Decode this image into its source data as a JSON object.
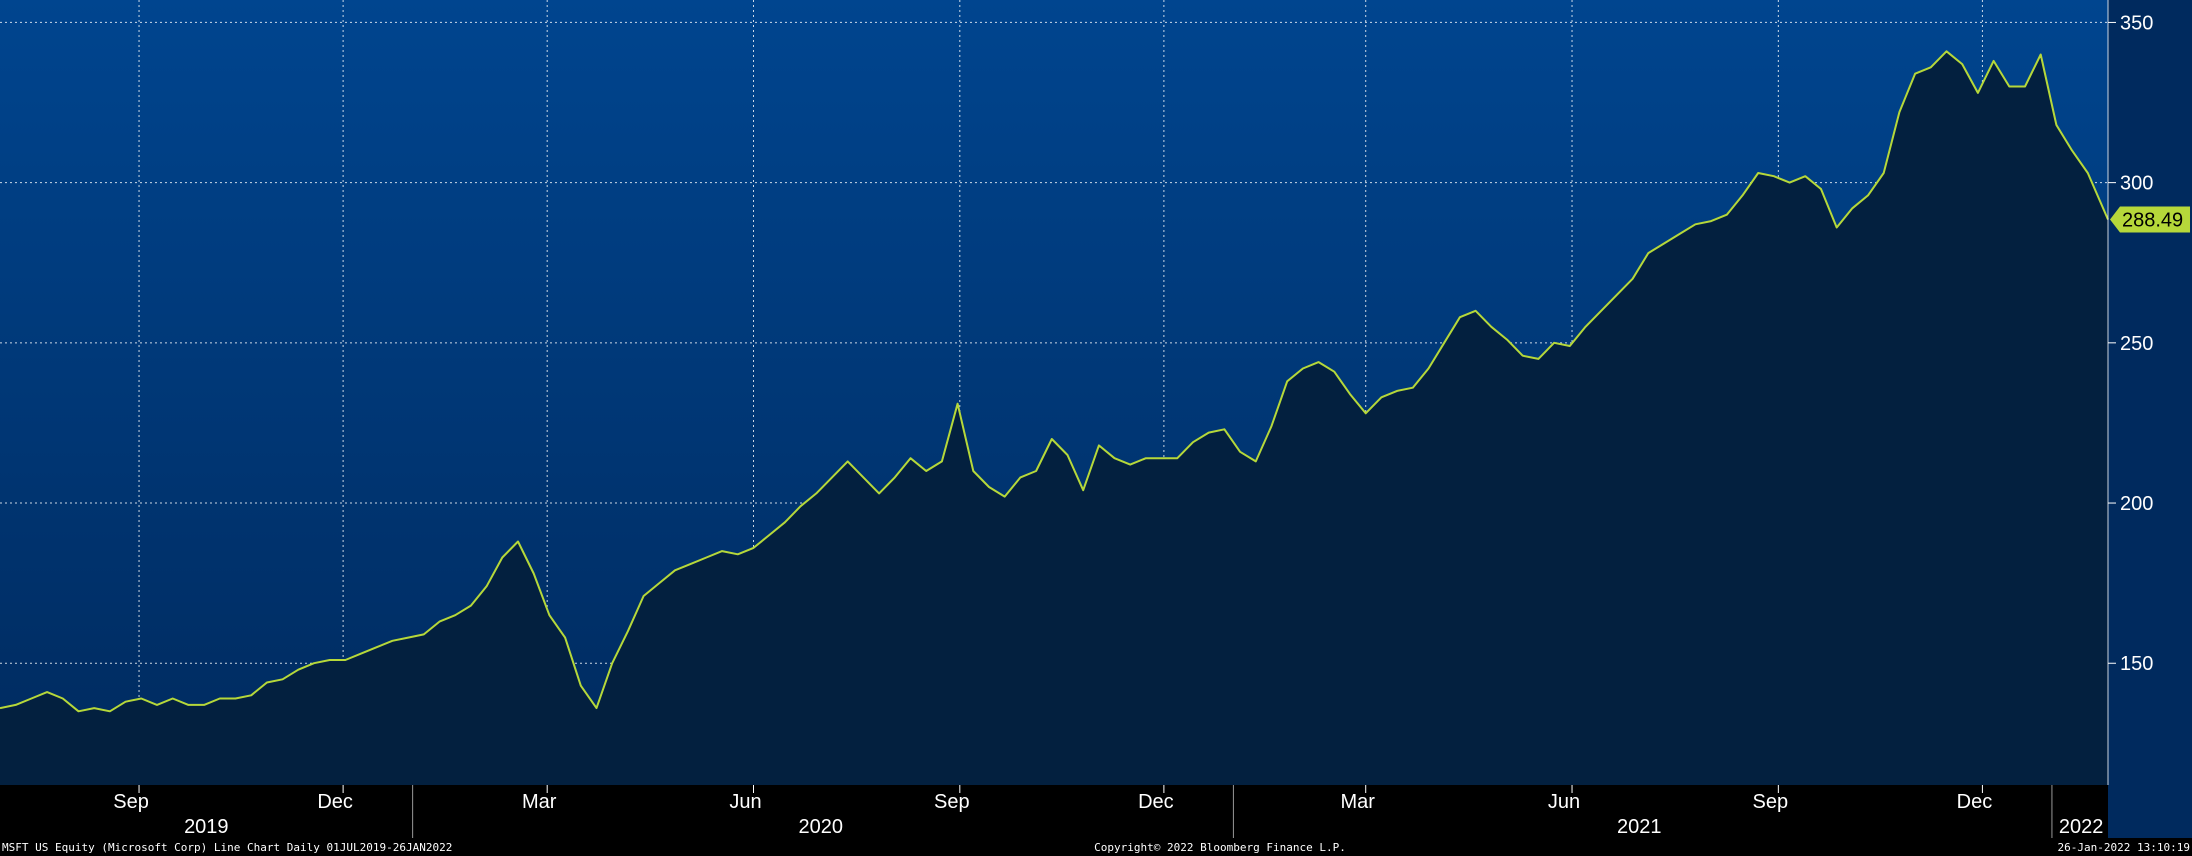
{
  "chart_data": {
    "type": "area",
    "ticker": "MSFT US Equity",
    "series": [
      {
        "name": "MSFT US Equity",
        "points": [
          [
            "2019-07-01",
            136
          ],
          [
            "2019-07-08",
            137
          ],
          [
            "2019-07-15",
            139
          ],
          [
            "2019-07-22",
            141
          ],
          [
            "2019-07-29",
            139
          ],
          [
            "2019-08-05",
            135
          ],
          [
            "2019-08-12",
            136
          ],
          [
            "2019-08-19",
            135
          ],
          [
            "2019-08-26",
            138
          ],
          [
            "2019-09-02",
            139
          ],
          [
            "2019-09-09",
            137
          ],
          [
            "2019-09-16",
            139
          ],
          [
            "2019-09-23",
            137
          ],
          [
            "2019-09-30",
            137
          ],
          [
            "2019-10-07",
            139
          ],
          [
            "2019-10-14",
            139
          ],
          [
            "2019-10-21",
            140
          ],
          [
            "2019-10-28",
            144
          ],
          [
            "2019-11-04",
            145
          ],
          [
            "2019-11-11",
            148
          ],
          [
            "2019-11-18",
            150
          ],
          [
            "2019-11-25",
            151
          ],
          [
            "2019-12-02",
            151
          ],
          [
            "2019-12-09",
            153
          ],
          [
            "2019-12-16",
            155
          ],
          [
            "2019-12-23",
            157
          ],
          [
            "2019-12-30",
            158
          ],
          [
            "2020-01-06",
            159
          ],
          [
            "2020-01-13",
            163
          ],
          [
            "2020-01-20",
            165
          ],
          [
            "2020-01-27",
            168
          ],
          [
            "2020-02-03",
            174
          ],
          [
            "2020-02-10",
            183
          ],
          [
            "2020-02-17",
            188
          ],
          [
            "2020-02-24",
            178
          ],
          [
            "2020-03-02",
            165
          ],
          [
            "2020-03-09",
            158
          ],
          [
            "2020-03-16",
            143
          ],
          [
            "2020-03-23",
            136
          ],
          [
            "2020-03-30",
            150
          ],
          [
            "2020-04-06",
            160
          ],
          [
            "2020-04-13",
            171
          ],
          [
            "2020-04-20",
            175
          ],
          [
            "2020-04-27",
            179
          ],
          [
            "2020-05-04",
            181
          ],
          [
            "2020-05-11",
            183
          ],
          [
            "2020-05-18",
            185
          ],
          [
            "2020-05-25",
            184
          ],
          [
            "2020-06-01",
            186
          ],
          [
            "2020-06-08",
            190
          ],
          [
            "2020-06-15",
            194
          ],
          [
            "2020-06-22",
            199
          ],
          [
            "2020-06-29",
            203
          ],
          [
            "2020-07-06",
            208
          ],
          [
            "2020-07-13",
            213
          ],
          [
            "2020-07-20",
            208
          ],
          [
            "2020-07-27",
            203
          ],
          [
            "2020-08-03",
            208
          ],
          [
            "2020-08-10",
            214
          ],
          [
            "2020-08-17",
            210
          ],
          [
            "2020-08-24",
            213
          ],
          [
            "2020-08-31",
            231
          ],
          [
            "2020-09-07",
            210
          ],
          [
            "2020-09-14",
            205
          ],
          [
            "2020-09-21",
            202
          ],
          [
            "2020-09-28",
            208
          ],
          [
            "2020-10-05",
            210
          ],
          [
            "2020-10-12",
            220
          ],
          [
            "2020-10-19",
            215
          ],
          [
            "2020-10-26",
            204
          ],
          [
            "2020-11-02",
            218
          ],
          [
            "2020-11-09",
            214
          ],
          [
            "2020-11-16",
            212
          ],
          [
            "2020-11-23",
            214
          ],
          [
            "2020-11-30",
            214
          ],
          [
            "2020-12-07",
            214
          ],
          [
            "2020-12-14",
            219
          ],
          [
            "2020-12-21",
            222
          ],
          [
            "2020-12-28",
            223
          ],
          [
            "2021-01-04",
            216
          ],
          [
            "2021-01-11",
            213
          ],
          [
            "2021-01-18",
            224
          ],
          [
            "2021-01-25",
            238
          ],
          [
            "2021-02-01",
            242
          ],
          [
            "2021-02-08",
            244
          ],
          [
            "2021-02-15",
            241
          ],
          [
            "2021-02-22",
            234
          ],
          [
            "2021-03-01",
            228
          ],
          [
            "2021-03-08",
            233
          ],
          [
            "2021-03-15",
            235
          ],
          [
            "2021-03-22",
            236
          ],
          [
            "2021-03-29",
            242
          ],
          [
            "2021-04-05",
            250
          ],
          [
            "2021-04-12",
            258
          ],
          [
            "2021-04-19",
            260
          ],
          [
            "2021-04-26",
            255
          ],
          [
            "2021-05-03",
            251
          ],
          [
            "2021-05-10",
            246
          ],
          [
            "2021-05-17",
            245
          ],
          [
            "2021-05-24",
            250
          ],
          [
            "2021-05-31",
            249
          ],
          [
            "2021-06-07",
            255
          ],
          [
            "2021-06-14",
            260
          ],
          [
            "2021-06-21",
            265
          ],
          [
            "2021-06-28",
            270
          ],
          [
            "2021-07-05",
            278
          ],
          [
            "2021-07-12",
            281
          ],
          [
            "2021-07-19",
            284
          ],
          [
            "2021-07-26",
            287
          ],
          [
            "2021-08-02",
            288
          ],
          [
            "2021-08-09",
            290
          ],
          [
            "2021-08-16",
            296
          ],
          [
            "2021-08-23",
            303
          ],
          [
            "2021-08-30",
            302
          ],
          [
            "2021-09-06",
            300
          ],
          [
            "2021-09-13",
            302
          ],
          [
            "2021-09-20",
            298
          ],
          [
            "2021-09-27",
            286
          ],
          [
            "2021-10-04",
            292
          ],
          [
            "2021-10-11",
            296
          ],
          [
            "2021-10-18",
            303
          ],
          [
            "2021-10-25",
            322
          ],
          [
            "2021-11-01",
            334
          ],
          [
            "2021-11-08",
            336
          ],
          [
            "2021-11-15",
            341
          ],
          [
            "2021-11-22",
            337
          ],
          [
            "2021-11-29",
            328
          ],
          [
            "2021-12-06",
            338
          ],
          [
            "2021-12-13",
            330
          ],
          [
            "2021-12-20",
            330
          ],
          [
            "2021-12-27",
            340
          ],
          [
            "2022-01-03",
            318
          ],
          [
            "2022-01-10",
            310
          ],
          [
            "2022-01-17",
            303
          ],
          [
            "2022-01-26",
            288.49
          ]
        ]
      }
    ],
    "x_range": [
      "2019-07-01",
      "2022-01-26"
    ],
    "ylim": [
      112,
      357
    ],
    "y_axis_side": "right",
    "y_ticks": [
      150,
      200,
      250,
      300,
      350
    ],
    "grid": true,
    "last_value": 288.49,
    "last_value_label": "288.49",
    "x_month_ticks": [
      {
        "label": "Sep",
        "date": "2019-09-01"
      },
      {
        "label": "Dec",
        "date": "2019-12-01"
      },
      {
        "label": "Mar",
        "date": "2020-03-01"
      },
      {
        "label": "Jun",
        "date": "2020-06-01"
      },
      {
        "label": "Sep",
        "date": "2020-09-01"
      },
      {
        "label": "Dec",
        "date": "2020-12-01"
      },
      {
        "label": "Mar",
        "date": "2021-03-01"
      },
      {
        "label": "Jun",
        "date": "2021-06-01"
      },
      {
        "label": "Sep",
        "date": "2021-09-01"
      },
      {
        "label": "Dec",
        "date": "2021-12-01"
      }
    ],
    "x_year_labels": [
      {
        "label": "2019",
        "date": "2019-10-01"
      },
      {
        "label": "2020",
        "date": "2020-07-01"
      },
      {
        "label": "2021",
        "date": "2021-07-01"
      },
      {
        "label": "2022",
        "date": "2022-01-14"
      }
    ],
    "x_year_boundaries": [
      "2020-01-01",
      "2021-01-01",
      "2022-01-01"
    ]
  },
  "colors": {
    "background_top": "#00458f",
    "background_bottom": "#002a5e",
    "area_fill": "#03203f",
    "line": "#b6d83a",
    "grid": "#ffffff",
    "axis_text": "#ffffff",
    "footer_bg": "#000000"
  },
  "footer": {
    "left": "MSFT US Equity (Microsoft Corp) Line Chart  Daily 01JUL2019-26JAN2022",
    "center": "Copyright© 2022 Bloomberg Finance L.P.",
    "right": "26-Jan-2022 13:10:19"
  }
}
